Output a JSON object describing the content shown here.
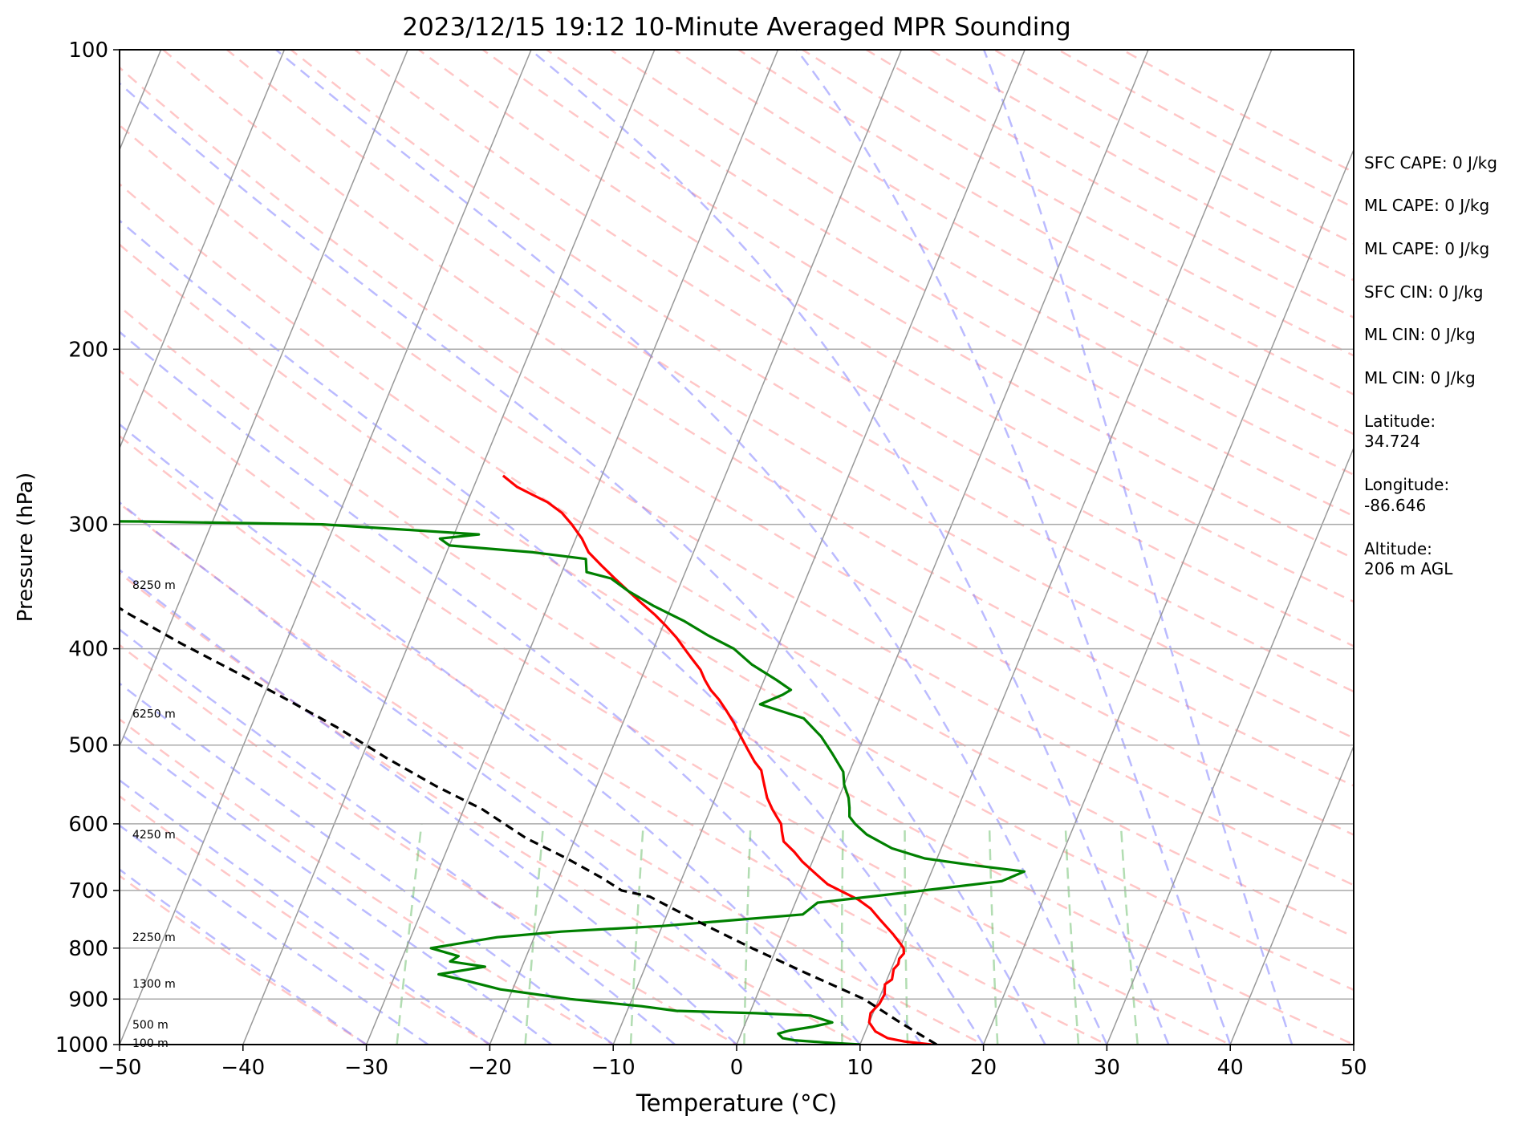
{
  "chart_data": {
    "type": "line",
    "title": "2023/12/15 19:12 10-Minute Averaged MPR Sounding",
    "xlabel": "Temperature (°C)",
    "ylabel": "Pressure (hPa)",
    "xlim": [
      -50,
      50
    ],
    "ylim": [
      1000,
      100
    ],
    "y_scale": "log",
    "skew": true,
    "grid": true,
    "xticks": [
      "−50",
      "−40",
      "−30",
      "−20",
      "−10",
      "0",
      "10",
      "20",
      "30",
      "40",
      "50"
    ],
    "yticks": [
      "100",
      "200",
      "300",
      "400",
      "500",
      "600",
      "700",
      "800",
      "900",
      "1000"
    ],
    "height_labels": [
      {
        "p": 996,
        "label": "100 m"
      },
      {
        "p": 955,
        "label": "500 m"
      },
      {
        "p": 868,
        "label": "1300 m"
      },
      {
        "p": 780,
        "label": "2250 m"
      },
      {
        "p": 615,
        "label": "4250 m"
      },
      {
        "p": 465,
        "label": "6250 m"
      },
      {
        "p": 345,
        "label": "8250 m"
      }
    ],
    "series": [
      {
        "color": "#ff0000",
        "points": [
          [
            15.8,
            1000
          ],
          [
            13.5,
            993
          ],
          [
            12.0,
            985
          ],
          [
            10.8,
            970
          ],
          [
            10.0,
            950
          ],
          [
            9.8,
            930
          ],
          [
            10.2,
            910
          ],
          [
            10.3,
            890
          ],
          [
            10.0,
            870
          ],
          [
            10.4,
            860
          ],
          [
            10.3,
            850
          ],
          [
            10.2,
            840
          ],
          [
            10.4,
            830
          ],
          [
            10.3,
            820
          ],
          [
            10.5,
            810
          ],
          [
            10.3,
            800
          ],
          [
            9.8,
            790
          ],
          [
            9.0,
            775
          ],
          [
            7.5,
            750
          ],
          [
            6.3,
            730
          ],
          [
            5.0,
            715
          ],
          [
            3.2,
            700
          ],
          [
            2.0,
            690
          ],
          [
            0.8,
            675
          ],
          [
            -0.8,
            655
          ],
          [
            -1.8,
            640
          ],
          [
            -3.0,
            625
          ],
          [
            -3.5,
            610
          ],
          [
            -3.8,
            600
          ],
          [
            -4.4,
            590
          ],
          [
            -5.0,
            580
          ],
          [
            -5.8,
            565
          ],
          [
            -6.4,
            550
          ],
          [
            -6.8,
            540
          ],
          [
            -7.2,
            530
          ],
          [
            -8.0,
            520
          ],
          [
            -9.0,
            505
          ],
          [
            -10.0,
            490
          ],
          [
            -11.0,
            475
          ],
          [
            -12.0,
            462
          ],
          [
            -13.0,
            450
          ],
          [
            -14.0,
            440
          ],
          [
            -14.8,
            430
          ],
          [
            -15.5,
            420
          ],
          [
            -16.5,
            410
          ],
          [
            -17.5,
            400
          ],
          [
            -18.5,
            390
          ],
          [
            -19.7,
            380
          ],
          [
            -21.0,
            370
          ],
          [
            -22.5,
            360
          ],
          [
            -24.0,
            350
          ],
          [
            -25.5,
            340
          ],
          [
            -27.0,
            330
          ],
          [
            -28.5,
            320
          ],
          [
            -29.5,
            310
          ],
          [
            -30.8,
            300
          ],
          [
            -32.0,
            292
          ],
          [
            -33.5,
            285
          ],
          [
            -35.0,
            280
          ],
          [
            -36.5,
            275
          ],
          [
            -38.0,
            268
          ]
        ]
      },
      {
        "color": "#008000",
        "points": [
          [
            10.0,
            1000
          ],
          [
            7.0,
            995
          ],
          [
            4.5,
            990
          ],
          [
            3.5,
            985
          ],
          [
            3.0,
            975
          ],
          [
            3.8,
            968
          ],
          [
            5.5,
            960
          ],
          [
            7.0,
            950
          ],
          [
            5.0,
            935
          ],
          [
            0.5,
            930
          ],
          [
            -6.0,
            925
          ],
          [
            -9.0,
            915
          ],
          [
            -15.0,
            900
          ],
          [
            -21.0,
            880
          ],
          [
            -24.5,
            860
          ],
          [
            -26.5,
            850
          ],
          [
            -23.0,
            835
          ],
          [
            -26.0,
            825
          ],
          [
            -25.5,
            815
          ],
          [
            -28.0,
            800
          ],
          [
            -23.0,
            780
          ],
          [
            -18.0,
            770
          ],
          [
            -10.0,
            760
          ],
          [
            1.0,
            740
          ],
          [
            1.8,
            720
          ],
          [
            10.0,
            700
          ],
          [
            16.0,
            685
          ],
          [
            17.5,
            670
          ],
          [
            13.0,
            660
          ],
          [
            9.0,
            650
          ],
          [
            6.0,
            635
          ],
          [
            3.5,
            615
          ],
          [
            2.2,
            600
          ],
          [
            1.5,
            590
          ],
          [
            1.2,
            578
          ],
          [
            0.8,
            565
          ],
          [
            0.0,
            548
          ],
          [
            -0.5,
            532
          ],
          [
            -2.0,
            510
          ],
          [
            -3.5,
            490
          ],
          [
            -5.5,
            470
          ],
          [
            -9.5,
            455
          ],
          [
            -8.0,
            445
          ],
          [
            -7.5,
            440
          ],
          [
            -9.0,
            430
          ],
          [
            -11.5,
            415
          ],
          [
            -13.5,
            400
          ],
          [
            -16.0,
            388
          ],
          [
            -18.5,
            375
          ],
          [
            -21.5,
            362
          ],
          [
            -24.0,
            350
          ],
          [
            -25.8,
            340
          ],
          [
            -28.0,
            335
          ],
          [
            -28.5,
            325
          ],
          [
            -33.0,
            320
          ],
          [
            -40.0,
            315
          ],
          [
            -41.0,
            310
          ],
          [
            -38.0,
            307
          ],
          [
            -51.0,
            300
          ],
          [
            -66.0,
            298
          ],
          [
            -90.0,
            297
          ]
        ]
      },
      {
        "color": "#000000",
        "dashed": true,
        "points": [
          [
            16.2,
            1000
          ],
          [
            12.5,
            950
          ],
          [
            8.8,
            900
          ],
          [
            3.5,
            850
          ],
          [
            -2.0,
            800
          ],
          [
            -7.5,
            750
          ],
          [
            -12.0,
            710
          ],
          [
            -14.5,
            700
          ],
          [
            -16.5,
            680
          ],
          [
            -20.0,
            650
          ],
          [
            -24.0,
            620
          ],
          [
            -28.5,
            580
          ],
          [
            -33.0,
            550
          ],
          [
            -38.0,
            515
          ],
          [
            -43.0,
            480
          ],
          [
            -48.0,
            450
          ],
          [
            -53.5,
            420
          ],
          [
            -58.5,
            395
          ],
          [
            -63.5,
            370
          ],
          [
            -68.5,
            345
          ],
          [
            -73.5,
            322
          ],
          [
            -78.5,
            300
          ],
          [
            -83.0,
            285
          ],
          [
            -87.0,
            270
          ]
        ]
      }
    ]
  },
  "info_panel": {
    "sfc_cape": "SFC CAPE: 0 J/kg",
    "ml_cape_1": "ML CAPE: 0 J/kg",
    "ml_cape_2": "ML CAPE: 0 J/kg",
    "sfc_cin": "SFC CIN: 0 J/kg",
    "ml_cin_1": "ML CIN: 0 J/kg",
    "ml_cin_2": "ML CIN: 0 J/kg",
    "latitude_label": "Latitude:",
    "latitude_value": "34.724",
    "longitude_label": "Longitude:",
    "longitude_value": "-86.646",
    "altitude_label": "Altitude:",
    "altitude_value": "206 m AGL"
  }
}
